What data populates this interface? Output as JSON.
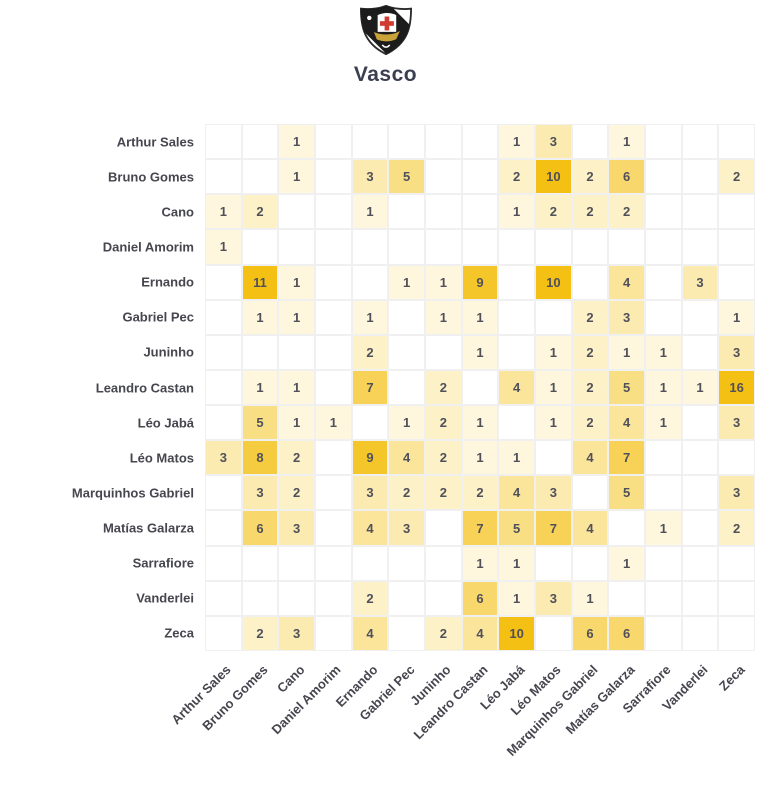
{
  "header": {
    "title": "Vasco",
    "logo": "vasco-da-gama-crest"
  },
  "chart_data": {
    "type": "heatmap",
    "title": "Vasco",
    "x_categories": [
      "Arthur Sales",
      "Bruno Gomes",
      "Cano",
      "Daniel Amorim",
      "Ernando",
      "Gabriel Pec",
      "Juninho",
      "Leandro Castan",
      "Léo Jabá",
      "Léo Matos",
      "Marquinhos Gabriel",
      "Matías Galarza",
      "Sarrafiore",
      "Vanderlei",
      "Zeca"
    ],
    "y_categories": [
      "Arthur Sales",
      "Bruno Gomes",
      "Cano",
      "Daniel Amorim",
      "Ernando",
      "Gabriel Pec",
      "Juninho",
      "Leandro Castan",
      "Léo Jabá",
      "Léo Matos",
      "Marquinhos Gabriel",
      "Matías Galarza",
      "Sarrafiore",
      "Vanderlei",
      "Zeca"
    ],
    "matrix": [
      [
        0,
        0,
        1,
        0,
        0,
        0,
        0,
        0,
        1,
        3,
        0,
        1,
        0,
        0,
        0
      ],
      [
        0,
        0,
        1,
        0,
        3,
        5,
        0,
        0,
        2,
        10,
        2,
        6,
        0,
        0,
        2
      ],
      [
        1,
        2,
        0,
        0,
        1,
        0,
        0,
        0,
        1,
        2,
        2,
        2,
        0,
        0,
        0
      ],
      [
        1,
        0,
        0,
        0,
        0,
        0,
        0,
        0,
        0,
        0,
        0,
        0,
        0,
        0,
        0
      ],
      [
        0,
        11,
        1,
        0,
        0,
        1,
        1,
        9,
        0,
        10,
        0,
        4,
        0,
        3,
        0
      ],
      [
        0,
        1,
        1,
        0,
        1,
        0,
        1,
        1,
        0,
        0,
        2,
        3,
        0,
        0,
        1
      ],
      [
        0,
        0,
        0,
        0,
        2,
        0,
        0,
        1,
        0,
        1,
        2,
        1,
        1,
        0,
        3
      ],
      [
        0,
        1,
        1,
        0,
        7,
        0,
        2,
        0,
        4,
        1,
        2,
        5,
        1,
        1,
        16
      ],
      [
        0,
        5,
        1,
        1,
        0,
        1,
        2,
        1,
        0,
        1,
        2,
        4,
        1,
        0,
        3
      ],
      [
        3,
        8,
        2,
        0,
        9,
        4,
        2,
        1,
        1,
        0,
        4,
        7,
        0,
        0,
        0
      ],
      [
        0,
        3,
        2,
        0,
        3,
        2,
        2,
        2,
        4,
        3,
        0,
        5,
        0,
        0,
        3
      ],
      [
        0,
        6,
        3,
        0,
        4,
        3,
        0,
        7,
        5,
        7,
        4,
        0,
        1,
        0,
        2
      ],
      [
        0,
        0,
        0,
        0,
        0,
        0,
        0,
        1,
        1,
        0,
        0,
        1,
        0,
        0,
        0
      ],
      [
        0,
        0,
        0,
        0,
        2,
        0,
        0,
        6,
        1,
        3,
        1,
        0,
        0,
        0,
        0
      ],
      [
        0,
        2,
        3,
        0,
        4,
        0,
        2,
        4,
        10,
        0,
        6,
        6,
        0,
        0,
        0
      ]
    ],
    "empty_value": 0,
    "value_range": [
      1,
      16
    ],
    "grid_on": true,
    "legend": "none",
    "colors": {
      "cell_low": "#FFFDF5",
      "cell_high": "#F3C013",
      "saturation_value": 10,
      "empty_cell": "#FFFFFF",
      "gridline": "#F0F0F0",
      "cell_text": "#50505A",
      "axis_label": "#46464F",
      "title": "#3A4052",
      "crest_black": "#1C1C1C",
      "crest_white": "#FFFFFF",
      "crest_cross_red": "#D23B31",
      "crest_hull_gold": "#C9A23A"
    }
  }
}
